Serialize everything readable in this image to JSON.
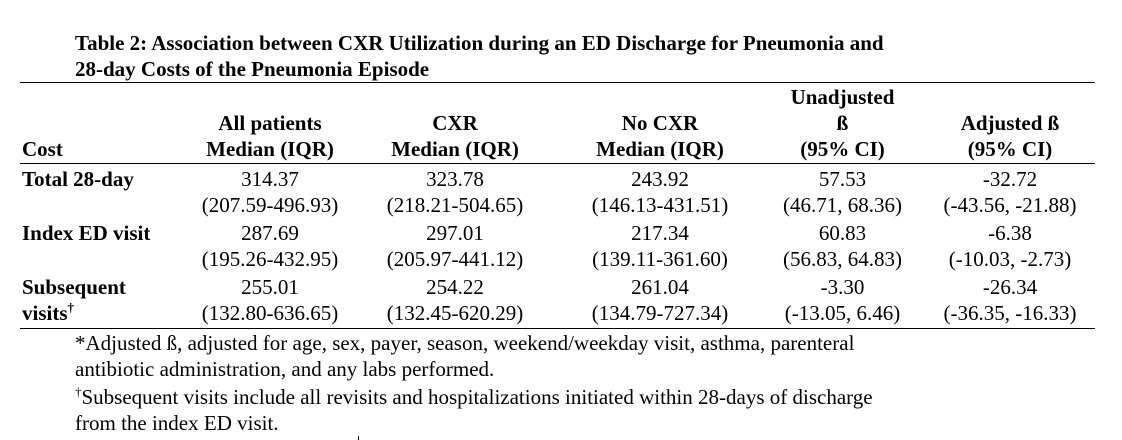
{
  "table": {
    "title_line1": "Table 2: Association between CXR Utilization during an ED Discharge for Pneumonia and",
    "title_line2": "28-day Costs of the Pneumonia Episode",
    "headers": {
      "cost": "Cost",
      "all_line1": "All patients",
      "all_line2": "Median (IQR)",
      "cxr_line1": "CXR",
      "cxr_line2": "Median (IQR)",
      "nocxr_line1": "No CXR",
      "nocxr_line2": "Median (IQR)",
      "unadj_line1": "Unadjusted",
      "unadj_line2": "ß",
      "unadj_line3": "(95% CI)",
      "adj_line1": "Adjusted ß",
      "adj_line2": "(95% CI)"
    },
    "rows": [
      {
        "label_line1": "Total 28-day",
        "label_line2": "",
        "all": [
          "314.37",
          "(207.59-496.93)"
        ],
        "cxr": [
          "323.78",
          "(218.21-504.65)"
        ],
        "nocxr": [
          "243.92",
          "(146.13-431.51)"
        ],
        "unadj": [
          "57.53",
          "(46.71, 68.36)"
        ],
        "adj": [
          "-32.72",
          "(-43.56, -21.88)"
        ]
      },
      {
        "label_line1": "Index ED visit",
        "label_line2": "",
        "all": [
          "287.69",
          "(195.26-432.95)"
        ],
        "cxr": [
          "297.01",
          "(205.97-441.12)"
        ],
        "nocxr": [
          "217.34",
          "(139.11-361.60)"
        ],
        "unadj": [
          "60.83",
          "(56.83, 64.83)"
        ],
        "adj": [
          "-6.38",
          "(-10.03, -2.73)"
        ]
      },
      {
        "label_line1": "Subsequent",
        "label_line2": "visits",
        "label_sup": "†",
        "all": [
          "255.01",
          "(132.80-636.65)"
        ],
        "cxr": [
          "254.22",
          "(132.45-620.29)"
        ],
        "nocxr": [
          "261.04",
          "(134.79-727.34)"
        ],
        "unadj": [
          "-3.30",
          "(-13.05, 6.46)"
        ],
        "adj": [
          "-26.34",
          "(-36.35, -16.33)"
        ]
      }
    ],
    "footnotes": {
      "note1_line1": "*Adjusted ß, adjusted for age, sex, payer, season, weekend/weekday visit, asthma, parenteral",
      "note1_line2": "antibiotic administration, and any labs performed.",
      "note2_sup": "†",
      "note2_line1": "Subsequent visits include all revisits and hospitalizations initiated within 28-days of discharge",
      "note2_line2": "from the index ED visit."
    }
  }
}
